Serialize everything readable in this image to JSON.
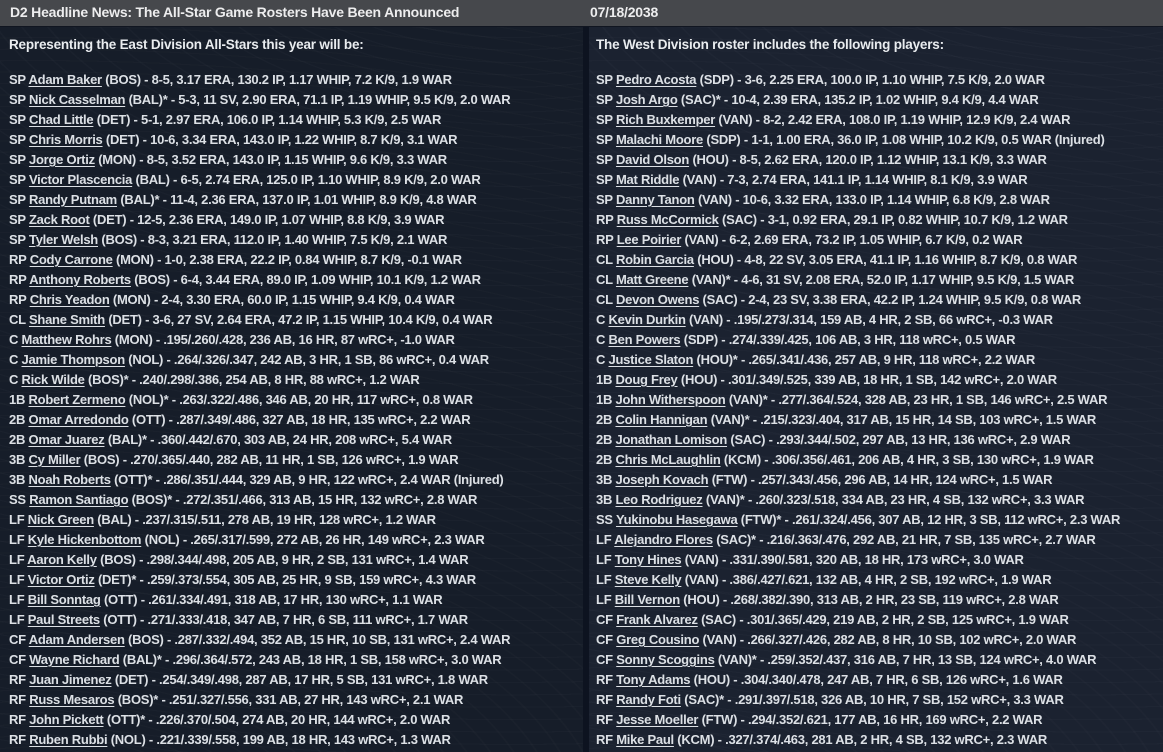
{
  "topbar": {
    "title": "D2 Headline News: The All-Star Game Rosters Have Been Announced",
    "date": "07/18/2038"
  },
  "colors": {
    "topbar_bg": "#46484c",
    "panel_left_bg": "#161d29",
    "panel_right_bg": "#1b2230",
    "divider": "#0d1320",
    "text": "#dce0e5"
  },
  "columns": [
    {
      "id": "east",
      "intro": "Representing the East Division All-Stars this year will be:",
      "players": [
        {
          "pos": "SP",
          "name": "Adam Baker",
          "team": "BOS",
          "star": false,
          "stats": "8-5, 3.17 ERA, 130.2 IP, 1.17 WHIP, 7.2 K/9, 1.9 WAR"
        },
        {
          "pos": "SP",
          "name": "Nick Casselman",
          "team": "BAL",
          "star": true,
          "stats": "5-3, 11 SV, 2.90 ERA, 71.1 IP, 1.19 WHIP, 9.5 K/9, 2.0 WAR"
        },
        {
          "pos": "SP",
          "name": "Chad Little",
          "team": "DET",
          "star": false,
          "stats": "5-1, 2.97 ERA, 106.0 IP, 1.14 WHIP, 5.3 K/9, 2.5 WAR"
        },
        {
          "pos": "SP",
          "name": "Chris Morris",
          "team": "DET",
          "star": false,
          "stats": "10-6, 3.34 ERA, 143.0 IP, 1.22 WHIP, 8.7 K/9, 3.1 WAR"
        },
        {
          "pos": "SP",
          "name": "Jorge Ortiz",
          "team": "MON",
          "star": false,
          "stats": "8-5, 3.52 ERA, 143.0 IP, 1.15 WHIP, 9.6 K/9, 3.3 WAR"
        },
        {
          "pos": "SP",
          "name": "Victor Plascencia",
          "team": "BAL",
          "star": false,
          "stats": "6-5, 2.74 ERA, 125.0 IP, 1.10 WHIP, 8.9 K/9, 2.0 WAR"
        },
        {
          "pos": "SP",
          "name": "Randy Putnam",
          "team": "BAL",
          "star": true,
          "stats": "11-4, 2.36 ERA, 137.0 IP, 1.01 WHIP, 8.9 K/9, 4.8 WAR"
        },
        {
          "pos": "SP",
          "name": "Zack Root",
          "team": "DET",
          "star": false,
          "stats": "12-5, 2.36 ERA, 149.0 IP, 1.07 WHIP, 8.8 K/9, 3.9 WAR"
        },
        {
          "pos": "SP",
          "name": "Tyler Welsh",
          "team": "BOS",
          "star": false,
          "stats": "8-3, 3.21 ERA, 112.0 IP, 1.40 WHIP, 7.5 K/9, 2.1 WAR"
        },
        {
          "pos": "RP",
          "name": "Cody Carrone",
          "team": "MON",
          "star": false,
          "stats": "1-0, 2.38 ERA, 22.2 IP, 0.84 WHIP, 8.7 K/9, -0.1 WAR"
        },
        {
          "pos": "RP",
          "name": "Anthony Roberts",
          "team": "BOS",
          "star": false,
          "stats": "6-4, 3.44 ERA, 89.0 IP, 1.09 WHIP, 10.1 K/9, 1.2 WAR"
        },
        {
          "pos": "RP",
          "name": "Chris Yeadon",
          "team": "MON",
          "star": false,
          "stats": "2-4, 3.30 ERA, 60.0 IP, 1.15 WHIP, 9.4 K/9, 0.4 WAR"
        },
        {
          "pos": "CL",
          "name": "Shane Smith",
          "team": "DET",
          "star": false,
          "stats": "3-6, 27 SV, 2.64 ERA, 47.2 IP, 1.15 WHIP, 10.4 K/9, 0.4 WAR"
        },
        {
          "pos": "C",
          "name": "Matthew Rohrs",
          "team": "MON",
          "star": false,
          "stats": ".195/.260/.428, 236 AB, 16 HR, 87 wRC+, -1.0 WAR"
        },
        {
          "pos": "C",
          "name": "Jamie Thompson",
          "team": "NOL",
          "star": false,
          "stats": ".264/.326/.347, 242 AB, 3 HR, 1 SB, 86 wRC+, 0.4 WAR"
        },
        {
          "pos": "C",
          "name": "Rick Wilde",
          "team": "BOS",
          "star": true,
          "stats": ".240/.298/.386, 254 AB, 8 HR, 88 wRC+, 1.2 WAR"
        },
        {
          "pos": "1B",
          "name": "Robert Zermeno",
          "team": "NOL",
          "star": true,
          "stats": ".263/.322/.486, 346 AB, 20 HR, 117 wRC+, 0.8 WAR"
        },
        {
          "pos": "2B",
          "name": "Omar Arredondo",
          "team": "OTT",
          "star": false,
          "stats": ".287/.349/.486, 327 AB, 18 HR, 135 wRC+, 2.2 WAR"
        },
        {
          "pos": "2B",
          "name": "Omar Juarez",
          "team": "BAL",
          "star": true,
          "stats": ".360/.442/.670, 303 AB, 24 HR, 208 wRC+, 5.4 WAR"
        },
        {
          "pos": "3B",
          "name": "Cy Miller",
          "team": "BOS",
          "star": false,
          "stats": ".270/.365/.440, 282 AB, 11 HR, 1 SB, 126 wRC+, 1.9 WAR"
        },
        {
          "pos": "3B",
          "name": "Noah Roberts",
          "team": "OTT",
          "star": true,
          "stats": ".286/.351/.444, 329 AB, 9 HR, 122 wRC+, 2.4 WAR (Injured)"
        },
        {
          "pos": "SS",
          "name": "Ramon Santiago",
          "team": "BOS",
          "star": true,
          "stats": ".272/.351/.466, 313 AB, 15 HR, 132 wRC+, 2.8 WAR"
        },
        {
          "pos": "LF",
          "name": "Nick Green",
          "team": "BAL",
          "star": false,
          "stats": ".237/.315/.511, 278 AB, 19 HR, 128 wRC+, 1.2 WAR"
        },
        {
          "pos": "LF",
          "name": "Kyle Hickenbottom",
          "team": "NOL",
          "star": false,
          "stats": ".265/.317/.599, 272 AB, 26 HR, 149 wRC+, 2.3 WAR"
        },
        {
          "pos": "LF",
          "name": "Aaron Kelly",
          "team": "BOS",
          "star": false,
          "stats": ".298/.344/.498, 205 AB, 9 HR, 2 SB, 131 wRC+, 1.4 WAR"
        },
        {
          "pos": "LF",
          "name": "Victor Ortiz",
          "team": "DET",
          "star": true,
          "stats": ".259/.373/.554, 305 AB, 25 HR, 9 SB, 159 wRC+, 4.3 WAR"
        },
        {
          "pos": "LF",
          "name": "Bill Sonntag",
          "team": "OTT",
          "star": false,
          "stats": ".261/.334/.491, 318 AB, 17 HR, 130 wRC+, 1.1 WAR"
        },
        {
          "pos": "LF",
          "name": "Paul Streets",
          "team": "OTT",
          "star": false,
          "stats": ".271/.333/.418, 347 AB, 7 HR, 6 SB, 111 wRC+, 1.7 WAR"
        },
        {
          "pos": "CF",
          "name": "Adam Andersen",
          "team": "BOS",
          "star": false,
          "stats": ".287/.332/.494, 352 AB, 15 HR, 10 SB, 131 wRC+, 2.4 WAR"
        },
        {
          "pos": "CF",
          "name": "Wayne Richard",
          "team": "BAL",
          "star": true,
          "stats": ".296/.364/.572, 243 AB, 18 HR, 1 SB, 158 wRC+, 3.0 WAR"
        },
        {
          "pos": "RF",
          "name": "Juan Jimenez",
          "team": "DET",
          "star": false,
          "stats": ".254/.349/.498, 287 AB, 17 HR, 5 SB, 131 wRC+, 1.8 WAR"
        },
        {
          "pos": "RF",
          "name": "Russ Mesaros",
          "team": "BOS",
          "star": true,
          "stats": ".251/.327/.556, 331 AB, 27 HR, 143 wRC+, 2.1 WAR"
        },
        {
          "pos": "RF",
          "name": "John Pickett",
          "team": "OTT",
          "star": true,
          "stats": ".226/.370/.504, 274 AB, 20 HR, 144 wRC+, 2.0 WAR"
        },
        {
          "pos": "RF",
          "name": "Ruben Rubbi",
          "team": "NOL",
          "star": false,
          "stats": ".221/.339/.558, 199 AB, 18 HR, 143 wRC+, 1.3 WAR"
        }
      ]
    },
    {
      "id": "west",
      "intro": "The West Division roster includes the following players:",
      "players": [
        {
          "pos": "SP",
          "name": "Pedro Acosta",
          "team": "SDP",
          "star": false,
          "stats": "3-6, 2.25 ERA, 100.0 IP, 1.10 WHIP, 7.5 K/9, 2.0 WAR"
        },
        {
          "pos": "SP",
          "name": "Josh Argo",
          "team": "SAC",
          "star": true,
          "stats": "10-4, 2.39 ERA, 135.2 IP, 1.02 WHIP, 9.4 K/9, 4.4 WAR"
        },
        {
          "pos": "SP",
          "name": "Rich Buxkemper",
          "team": "VAN",
          "star": false,
          "stats": "8-2, 2.42 ERA, 108.0 IP, 1.19 WHIP, 12.9 K/9, 2.4 WAR"
        },
        {
          "pos": "SP",
          "name": "Malachi Moore",
          "team": "SDP",
          "star": false,
          "stats": "1-1, 1.00 ERA, 36.0 IP, 1.08 WHIP, 10.2 K/9, 0.5 WAR (Injured)"
        },
        {
          "pos": "SP",
          "name": "David Olson",
          "team": "HOU",
          "star": false,
          "stats": "8-5, 2.62 ERA, 120.0 IP, 1.12 WHIP, 13.1 K/9, 3.3 WAR"
        },
        {
          "pos": "SP",
          "name": "Mat Riddle",
          "team": "VAN",
          "star": false,
          "stats": "7-3, 2.74 ERA, 141.1 IP, 1.14 WHIP, 8.1 K/9, 3.9 WAR"
        },
        {
          "pos": "SP",
          "name": "Danny Tanon",
          "team": "VAN",
          "star": false,
          "stats": "10-6, 3.32 ERA, 133.0 IP, 1.14 WHIP, 6.8 K/9, 2.8 WAR"
        },
        {
          "pos": "RP",
          "name": "Russ McCormick",
          "team": "SAC",
          "star": false,
          "stats": "3-1, 0.92 ERA, 29.1 IP, 0.82 WHIP, 10.7 K/9, 1.2 WAR"
        },
        {
          "pos": "RP",
          "name": "Lee Poirier",
          "team": "VAN",
          "star": false,
          "stats": "6-2, 2.69 ERA, 73.2 IP, 1.05 WHIP, 6.7 K/9, 0.2 WAR"
        },
        {
          "pos": "CL",
          "name": "Robin Garcia",
          "team": "HOU",
          "star": false,
          "stats": "4-8, 22 SV, 3.05 ERA, 41.1 IP, 1.16 WHIP, 8.7 K/9, 0.8 WAR"
        },
        {
          "pos": "CL",
          "name": "Matt Greene",
          "team": "VAN",
          "star": true,
          "stats": "4-6, 31 SV, 2.08 ERA, 52.0 IP, 1.17 WHIP, 9.5 K/9, 1.5 WAR"
        },
        {
          "pos": "CL",
          "name": "Devon Owens",
          "team": "SAC",
          "star": false,
          "stats": "2-4, 23 SV, 3.38 ERA, 42.2 IP, 1.24 WHIP, 9.5 K/9, 0.8 WAR"
        },
        {
          "pos": "C",
          "name": "Kevin Durkin",
          "team": "VAN",
          "star": false,
          "stats": ".195/.273/.314, 159 AB, 4 HR, 2 SB, 66 wRC+, -0.3 WAR"
        },
        {
          "pos": "C",
          "name": "Ben Powers",
          "team": "SDP",
          "star": false,
          "stats": ".274/.339/.425, 106 AB, 3 HR, 118 wRC+, 0.5 WAR"
        },
        {
          "pos": "C",
          "name": "Justice Slaton",
          "team": "HOU",
          "star": true,
          "stats": ".265/.341/.436, 257 AB, 9 HR, 118 wRC+, 2.2 WAR"
        },
        {
          "pos": "1B",
          "name": "Doug Frey",
          "team": "HOU",
          "star": false,
          "stats": ".301/.349/.525, 339 AB, 18 HR, 1 SB, 142 wRC+, 2.0 WAR"
        },
        {
          "pos": "1B",
          "name": "John Witherspoon",
          "team": "VAN",
          "star": true,
          "stats": ".277/.364/.524, 328 AB, 23 HR, 1 SB, 146 wRC+, 2.5 WAR"
        },
        {
          "pos": "2B",
          "name": "Colin Hannigan",
          "team": "VAN",
          "star": true,
          "stats": ".215/.323/.404, 317 AB, 15 HR, 14 SB, 103 wRC+, 1.5 WAR"
        },
        {
          "pos": "2B",
          "name": "Jonathan Lomison",
          "team": "SAC",
          "star": false,
          "stats": ".293/.344/.502, 297 AB, 13 HR, 136 wRC+, 2.9 WAR"
        },
        {
          "pos": "2B",
          "name": "Chris McLaughlin",
          "team": "KCM",
          "star": false,
          "stats": ".306/.356/.461, 206 AB, 4 HR, 3 SB, 130 wRC+, 1.9 WAR"
        },
        {
          "pos": "3B",
          "name": "Joseph Kovach",
          "team": "FTW",
          "star": false,
          "stats": ".257/.343/.456, 296 AB, 14 HR, 124 wRC+, 1.5 WAR"
        },
        {
          "pos": "3B",
          "name": "Leo Rodriguez",
          "team": "VAN",
          "star": true,
          "stats": ".260/.323/.518, 334 AB, 23 HR, 4 SB, 132 wRC+, 3.3 WAR"
        },
        {
          "pos": "SS",
          "name": "Yukinobu Hasegawa",
          "team": "FTW",
          "star": true,
          "stats": ".261/.324/.456, 307 AB, 12 HR, 3 SB, 112 wRC+, 2.3 WAR"
        },
        {
          "pos": "LF",
          "name": "Alejandro Flores",
          "team": "SAC",
          "star": true,
          "stats": ".216/.363/.476, 292 AB, 21 HR, 7 SB, 135 wRC+, 2.7 WAR"
        },
        {
          "pos": "LF",
          "name": "Tony Hines",
          "team": "VAN",
          "star": false,
          "stats": ".331/.390/.581, 320 AB, 18 HR, 173 wRC+, 3.0 WAR"
        },
        {
          "pos": "LF",
          "name": "Steve Kelly",
          "team": "VAN",
          "star": false,
          "stats": ".386/.427/.621, 132 AB, 4 HR, 2 SB, 192 wRC+, 1.9 WAR"
        },
        {
          "pos": "LF",
          "name": "Bill Vernon",
          "team": "HOU",
          "star": false,
          "stats": ".268/.382/.390, 313 AB, 2 HR, 23 SB, 119 wRC+, 2.8 WAR"
        },
        {
          "pos": "CF",
          "name": "Frank Alvarez",
          "team": "SAC",
          "star": false,
          "stats": ".301/.365/.429, 219 AB, 2 HR, 2 SB, 125 wRC+, 1.9 WAR"
        },
        {
          "pos": "CF",
          "name": "Greg Cousino",
          "team": "VAN",
          "star": false,
          "stats": ".266/.327/.426, 282 AB, 8 HR, 10 SB, 102 wRC+, 2.0 WAR"
        },
        {
          "pos": "CF",
          "name": "Sonny Scoggins",
          "team": "VAN",
          "star": true,
          "stats": ".259/.352/.437, 316 AB, 7 HR, 13 SB, 124 wRC+, 4.0 WAR"
        },
        {
          "pos": "RF",
          "name": "Tony Adams",
          "team": "HOU",
          "star": false,
          "stats": ".304/.340/.478, 247 AB, 7 HR, 6 SB, 126 wRC+, 1.6 WAR"
        },
        {
          "pos": "RF",
          "name": "Randy Foti",
          "team": "SAC",
          "star": true,
          "stats": ".291/.397/.518, 326 AB, 10 HR, 7 SB, 152 wRC+, 3.3 WAR"
        },
        {
          "pos": "RF",
          "name": "Jesse Moeller",
          "team": "FTW",
          "star": false,
          "stats": ".294/.352/.621, 177 AB, 16 HR, 169 wRC+, 2.2 WAR"
        },
        {
          "pos": "RF",
          "name": "Mike Paul",
          "team": "KCM",
          "star": false,
          "stats": ".327/.374/.463, 281 AB, 2 HR, 4 SB, 132 wRC+, 2.3 WAR"
        }
      ]
    }
  ]
}
